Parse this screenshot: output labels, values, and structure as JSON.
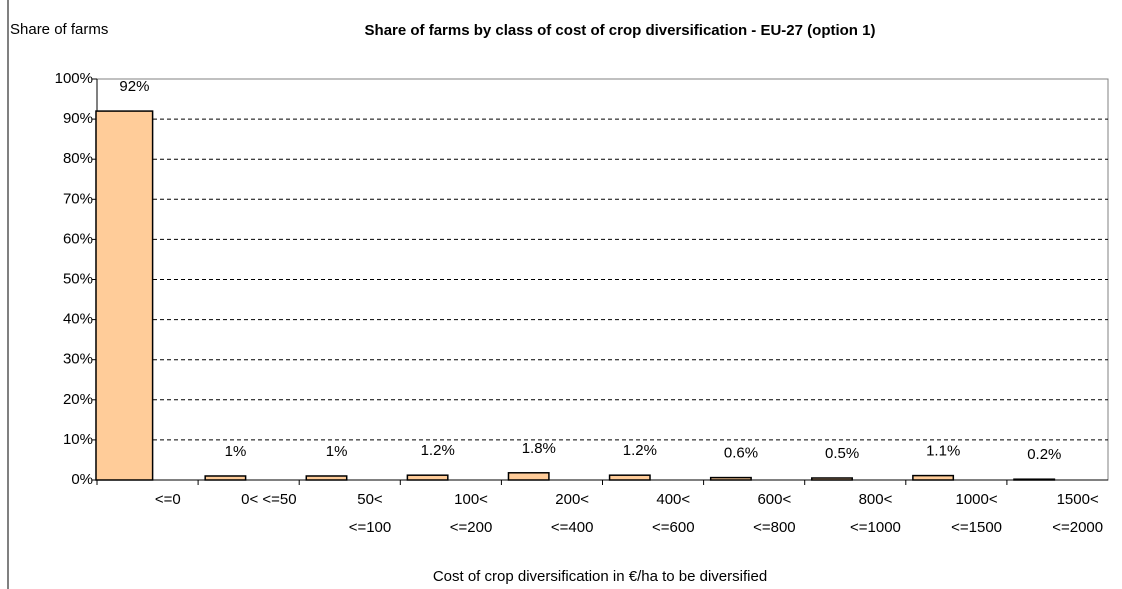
{
  "chart_data": {
    "type": "bar",
    "title": "Share of farms by class of cost of crop diversification - EU-27 (option 1)",
    "y_label": "Share of farms",
    "x_label": "Cost of crop diversification in €/ha to be diversified",
    "categories": [
      [
        "<=0"
      ],
      [
        "0<  <=50"
      ],
      [
        "50<",
        "<=100"
      ],
      [
        "100<",
        "<=200"
      ],
      [
        "200<",
        "<=400"
      ],
      [
        "400<",
        "<=600"
      ],
      [
        "600<",
        "<=800"
      ],
      [
        "800<",
        "<=1000"
      ],
      [
        "1000<",
        "<=1500"
      ],
      [
        "1500<",
        "<=2000"
      ]
    ],
    "values": [
      92,
      1,
      1,
      1.2,
      1.8,
      1.2,
      0.6,
      0.5,
      1.1,
      0.2
    ],
    "value_labels": [
      "92%",
      "1%",
      "1%",
      "1.2%",
      "1.8%",
      "1.2%",
      "0.6%",
      "0.5%",
      "1.1%",
      "0.2%"
    ],
    "color": "#ffcc99",
    "ylim": [
      0,
      100
    ],
    "yticks": [
      {
        "value": 0,
        "label": "0%"
      },
      {
        "value": 10,
        "label": "10%"
      },
      {
        "value": 20,
        "label": "20%"
      },
      {
        "value": 30,
        "label": "30%"
      },
      {
        "value": 40,
        "label": "40%"
      },
      {
        "value": 50,
        "label": "50%"
      },
      {
        "value": 60,
        "label": "60%"
      },
      {
        "value": 70,
        "label": "70%"
      },
      {
        "value": 80,
        "label": "80%"
      },
      {
        "value": 90,
        "label": "90%"
      },
      {
        "value": 100,
        "label": "100%"
      }
    ],
    "grid": true
  }
}
